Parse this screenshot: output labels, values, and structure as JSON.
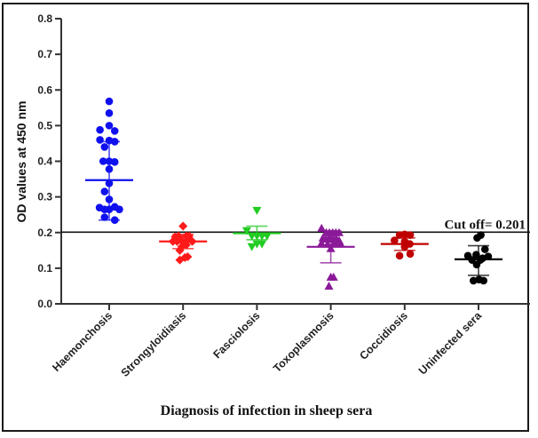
{
  "chart_data": {
    "type": "scatter",
    "title": "",
    "xlabel": "Diagnosis of infection in sheep sera",
    "ylabel": "OD values at 450 nm",
    "ylim": [
      0,
      0.8
    ],
    "yticks": [
      "0.0",
      "0.1",
      "0.2",
      "0.3",
      "0.4",
      "0.5",
      "0.6",
      "0.7",
      "0.8"
    ],
    "grid": false,
    "legend": "none",
    "cutoff": {
      "value": 0.201,
      "label": "Cut off= 0.201"
    },
    "categories": [
      "Haemonchosis",
      "Strongyloidiasis",
      "Fasciolosis",
      "Toxoplasmosis",
      "Coccidiosis",
      "Uninfected sera"
    ],
    "series": [
      {
        "name": "Haemonchosis",
        "marker": "circle",
        "color": "#1010ee",
        "mean": 0.347,
        "sd": [
          0.235,
          0.455
        ],
        "points": [
          {
            "dx": 0,
            "y": 0.568
          },
          {
            "dx": 0,
            "y": 0.535
          },
          {
            "dx": 0,
            "y": 0.5
          },
          {
            "dx": -2,
            "y": 0.488
          },
          {
            "dx": 1.2,
            "y": 0.485
          },
          {
            "dx": -2,
            "y": 0.46
          },
          {
            "dx": 0,
            "y": 0.458
          },
          {
            "dx": 1.2,
            "y": 0.455
          },
          {
            "dx": -1,
            "y": 0.44
          },
          {
            "dx": -1.3,
            "y": 0.4
          },
          {
            "dx": 0,
            "y": 0.4
          },
          {
            "dx": 1.2,
            "y": 0.398
          },
          {
            "dx": 0,
            "y": 0.378
          },
          {
            "dx": 0,
            "y": 0.338
          },
          {
            "dx": -1,
            "y": 0.315
          },
          {
            "dx": 0,
            "y": 0.293
          },
          {
            "dx": -2.1,
            "y": 0.27
          },
          {
            "dx": -1,
            "y": 0.265
          },
          {
            "dx": 0,
            "y": 0.265
          },
          {
            "dx": 1.2,
            "y": 0.272
          },
          {
            "dx": 2.2,
            "y": 0.265
          },
          {
            "dx": -1,
            "y": 0.243
          },
          {
            "dx": 1.2,
            "y": 0.235
          }
        ]
      },
      {
        "name": "Strongyloidiasis",
        "marker": "diamond",
        "color": "#ff1a1a",
        "mean": 0.175,
        "sd": [
          0.155,
          0.195
        ],
        "points": [
          {
            "dx": 0,
            "y": 0.218
          },
          {
            "dx": -1.7,
            "y": 0.188
          },
          {
            "dx": -1,
            "y": 0.19
          },
          {
            "dx": 0.7,
            "y": 0.19
          },
          {
            "dx": 1.3,
            "y": 0.19
          },
          {
            "dx": -2.2,
            "y": 0.175
          },
          {
            "dx": -1.3,
            "y": 0.175
          },
          {
            "dx": -0.4,
            "y": 0.178
          },
          {
            "dx": 0.4,
            "y": 0.172
          },
          {
            "dx": 1.1,
            "y": 0.18
          },
          {
            "dx": 2,
            "y": 0.175
          },
          {
            "dx": -0.3,
            "y": 0.16
          },
          {
            "dx": 0.7,
            "y": 0.165
          },
          {
            "dx": -0.7,
            "y": 0.15
          },
          {
            "dx": 0.4,
            "y": 0.13
          },
          {
            "dx": 1,
            "y": 0.132
          },
          {
            "dx": -0.7,
            "y": 0.123
          }
        ]
      },
      {
        "name": "Fasciolosis",
        "marker": "triangle-down",
        "color": "#22cc22",
        "mean": 0.198,
        "sd": [
          0.18,
          0.218
        ],
        "points": [
          {
            "dx": 0,
            "y": 0.262
          },
          {
            "dx": -2.2,
            "y": 0.205
          },
          {
            "dx": -1.1,
            "y": 0.19
          },
          {
            "dx": 0,
            "y": 0.19
          },
          {
            "dx": 1.1,
            "y": 0.19
          },
          {
            "dx": 2.2,
            "y": 0.19
          },
          {
            "dx": -1.1,
            "y": 0.16
          },
          {
            "dx": 0,
            "y": 0.168
          },
          {
            "dx": 1.1,
            "y": 0.168
          }
        ]
      },
      {
        "name": "Toxoplasmosis",
        "marker": "triangle-up",
        "color": "#8b1a99",
        "mean": 0.16,
        "sd": [
          0.115,
          0.205
        ],
        "points": [
          {
            "dx": -2,
            "y": 0.212
          },
          {
            "dx": -1,
            "y": 0.2
          },
          {
            "dx": -0.3,
            "y": 0.2
          },
          {
            "dx": 0.4,
            "y": 0.2
          },
          {
            "dx": 1.1,
            "y": 0.2
          },
          {
            "dx": 1.8,
            "y": 0.2
          },
          {
            "dx": -1.7,
            "y": 0.185
          },
          {
            "dx": -1,
            "y": 0.182
          },
          {
            "dx": -0.3,
            "y": 0.185
          },
          {
            "dx": 0.4,
            "y": 0.182
          },
          {
            "dx": 1.1,
            "y": 0.185
          },
          {
            "dx": 1.8,
            "y": 0.178
          },
          {
            "dx": -2,
            "y": 0.17
          },
          {
            "dx": -0.7,
            "y": 0.168
          },
          {
            "dx": 0.7,
            "y": 0.17
          },
          {
            "dx": 2,
            "y": 0.172
          },
          {
            "dx": 0,
            "y": 0.155
          },
          {
            "dx": 0,
            "y": 0.075
          },
          {
            "dx": 0.6,
            "y": 0.075
          },
          {
            "dx": -0.4,
            "y": 0.05
          }
        ]
      },
      {
        "name": "Coccidiosis",
        "marker": "circle",
        "color": "#c00000",
        "mean": 0.168,
        "sd": [
          0.15,
          0.185
        ],
        "points": [
          {
            "dx": -1.1,
            "y": 0.193
          },
          {
            "dx": 0,
            "y": 0.195
          },
          {
            "dx": 1.2,
            "y": 0.193
          },
          {
            "dx": -2.2,
            "y": 0.178
          },
          {
            "dx": 0,
            "y": 0.175
          },
          {
            "dx": 1.1,
            "y": 0.168
          },
          {
            "dx": 0,
            "y": 0.16
          },
          {
            "dx": -1.1,
            "y": 0.135
          },
          {
            "dx": 1.2,
            "y": 0.14
          }
        ]
      },
      {
        "name": "Uninfected sera",
        "marker": "circle",
        "color": "#000000",
        "mean": 0.125,
        "sd": [
          0.08,
          0.163
        ],
        "points": [
          {
            "dx": -0.3,
            "y": 0.185
          },
          {
            "dx": 0.5,
            "y": 0.193
          },
          {
            "dx": 1.4,
            "y": 0.153
          },
          {
            "dx": -2.3,
            "y": 0.135
          },
          {
            "dx": -0.5,
            "y": 0.138
          },
          {
            "dx": 0.9,
            "y": 0.128
          },
          {
            "dx": -1.4,
            "y": 0.123
          },
          {
            "dx": -0.4,
            "y": 0.11
          },
          {
            "dx": 0.4,
            "y": 0.123
          },
          {
            "dx": 2.1,
            "y": 0.133
          },
          {
            "dx": -1.1,
            "y": 0.065
          },
          {
            "dx": 0.1,
            "y": 0.068
          },
          {
            "dx": 1.1,
            "y": 0.065
          }
        ]
      }
    ]
  }
}
